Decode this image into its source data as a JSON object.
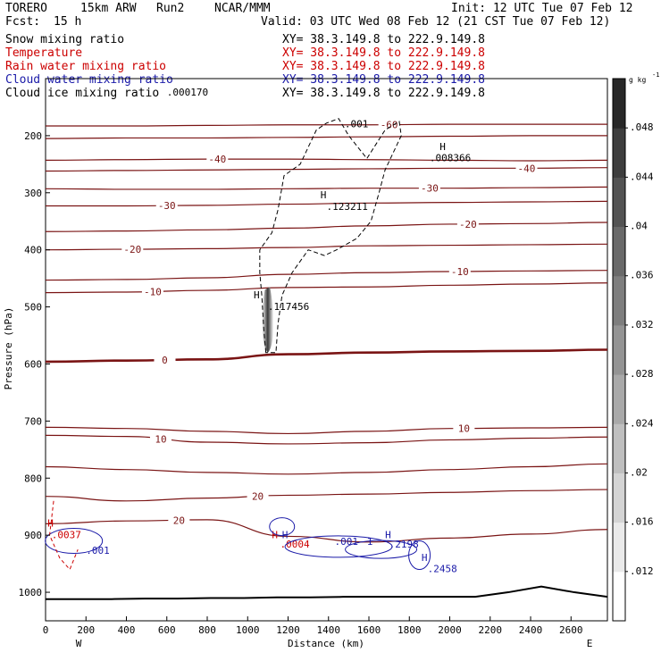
{
  "header": {
    "model": "TORERO",
    "resolution": "15km ARW",
    "run": "Run2",
    "org": "NCAR/MMM",
    "init": "Init: 12 UTC Tue 07 Feb 12",
    "fcst_label": "Fcst:",
    "fcst_value": "15 h",
    "valid": "Valid: 03 UTC Wed 08 Feb 12 (21 CST Tue 07 Feb 12)",
    "fields": [
      {
        "name": "Snow mixing ratio",
        "color": "#000000",
        "xy": "XY=  38.3.149.8 to 222.9.149.8",
        "xy_color": "#000000"
      },
      {
        "name": "Temperature",
        "color": "#cc0000",
        "xy": "XY=  38.3.149.8 to 222.9.149.8",
        "xy_color": "#cc0000"
      },
      {
        "name": "Rain water mixing ratio",
        "color": "#cc0000",
        "xy": "XY=  38.3.149.8 to 222.9.149.8",
        "xy_color": "#cc0000"
      },
      {
        "name": "Cloud water mixing ratio",
        "color": "#1a1aa8",
        "xy": "XY=  38.3.149.8 to 222.9.149.8",
        "xy_color": "#1a1aa8"
      },
      {
        "name": "Cloud ice mixing ratio",
        "color": "#000000",
        "xy": "XY=  38.3.149.8 to 222.9.149.8",
        "xy_color": "#000000"
      }
    ]
  },
  "chart_data": {
    "type": "cross-section",
    "xlabel": "Distance (km)",
    "ylabel": "Pressure (hPa)",
    "xlim": [
      0,
      2780
    ],
    "ylim": [
      1050,
      100
    ],
    "x_ticks": [
      0,
      200,
      400,
      600,
      800,
      1000,
      1200,
      1400,
      1600,
      1800,
      2000,
      2200,
      2400,
      2600
    ],
    "y_ticks": [
      200,
      300,
      400,
      500,
      600,
      700,
      800,
      900,
      1000
    ],
    "x_end_labels": {
      "left": "W",
      "right": "E"
    },
    "colorbar": {
      "unit": "g kg",
      "unit_exp": "-1",
      "ticks": [
        ".012",
        ".016",
        ".02",
        ".024",
        ".028",
        ".032",
        ".036",
        ".04",
        ".044",
        ".048"
      ]
    },
    "temperature_contours": [
      {
        "label": "-60",
        "p": [
          183,
          183,
          182,
          181,
          181,
          180,
          180,
          180
        ],
        "label_x": 1700
      },
      {
        "label": "",
        "p": [
          205,
          204,
          204,
          203,
          202,
          201,
          200,
          200
        ],
        "label_x": null
      },
      {
        "label": "-40",
        "p": [
          243,
          242,
          241,
          241,
          242,
          243,
          244,
          243
        ],
        "label_x": 850
      },
      {
        "label": "-40",
        "p": [
          262,
          261,
          260,
          259,
          258,
          257,
          257,
          256
        ],
        "label_x": 2380
      },
      {
        "label": "-30",
        "p": [
          293,
          294,
          294,
          293,
          292,
          292,
          291,
          290
        ],
        "label_x": 1900
      },
      {
        "label": "-30",
        "p": [
          323,
          323,
          322,
          320,
          318,
          317,
          316,
          315
        ],
        "label_x": 600
      },
      {
        "label": "-20",
        "p": [
          368,
          367,
          365,
          362,
          358,
          355,
          354,
          352
        ],
        "label_x": 2090
      },
      {
        "label": "-20",
        "p": [
          400,
          399,
          398,
          396,
          393,
          392,
          391,
          390
        ],
        "label_x": 430
      },
      {
        "label": "-10",
        "p": [
          453,
          452,
          449,
          443,
          440,
          438,
          437,
          436
        ],
        "label_x": 2050
      },
      {
        "label": "-10",
        "p": [
          475,
          474,
          471,
          466,
          465,
          462,
          460,
          458
        ],
        "label_x": 530
      },
      {
        "label": "0",
        "p": [
          596,
          594,
          592,
          583,
          580,
          578,
          577,
          575
        ],
        "label_x": 590
      },
      {
        "label": "10",
        "p": [
          711,
          713,
          718,
          722,
          718,
          713,
          712,
          711
        ],
        "label_x": 2070
      },
      {
        "label": "10",
        "p": [
          725,
          727,
          737,
          740,
          738,
          733,
          730,
          728
        ],
        "label_x": 570
      },
      {
        "label": "20",
        "p": [
          780,
          785,
          790,
          793,
          790,
          785,
          780,
          775
        ],
        "label_x": null
      },
      {
        "label": "20",
        "p": [
          832,
          840,
          835,
          830,
          828,
          825,
          822,
          820
        ],
        "label_x": 1050
      },
      {
        "label": "20",
        "p": [
          880,
          875,
          873,
          902,
          912,
          905,
          898,
          890
        ],
        "label_x": 660
      }
    ],
    "contour_x": [
      0,
      400,
      800,
      1200,
      1600,
      2000,
      2400,
      2780
    ],
    "snow_annotations": [
      {
        "text": ".000170",
        "x": 600,
        "p": 130
      },
      {
        "text": ".001",
        "x": 1480,
        "p": 185
      },
      {
        "text": ".008366",
        "x": 1900,
        "p": 245
      },
      {
        "text": ".123211",
        "x": 1390,
        "p": 330
      },
      {
        "text": ".117456",
        "x": 1100,
        "p": 505
      }
    ],
    "h_markers": [
      {
        "text": "H",
        "x": 1950,
        "p": 225,
        "color": "#000000"
      },
      {
        "text": "H",
        "x": 1360,
        "p": 310,
        "color": "#000000"
      },
      {
        "text": "H",
        "x": 1030,
        "p": 485,
        "color": "#000000"
      },
      {
        "text": "H",
        "x": 10,
        "p": 885,
        "color": "#cc0000"
      },
      {
        "text": "H",
        "x": 1120,
        "p": 905,
        "color": "#cc0000"
      },
      {
        "text": "H",
        "x": 1170,
        "p": 905,
        "color": "#1a1aa8"
      },
      {
        "text": "H",
        "x": 1680,
        "p": 905,
        "color": "#1a1aa8"
      },
      {
        "text": "H",
        "x": 1860,
        "p": 945,
        "color": "#1a1aa8"
      }
    ],
    "cloud_water_annotations": [
      {
        "text": ".001",
        "x": 200,
        "p": 933,
        "color": "#1a1aa8"
      },
      {
        "text": ".001",
        "x": 1430,
        "p": 917,
        "color": "#1a1aa8"
      },
      {
        "text": ".2198",
        "x": 1700,
        "p": 922,
        "color": "#1a1aa8"
      },
      {
        "text": ".2458",
        "x": 1890,
        "p": 965,
        "color": "#1a1aa8"
      },
      {
        "text": "1",
        "x": 1590,
        "p": 917,
        "color": "#1a1aa8"
      }
    ],
    "rain_annotations": [
      {
        "text": ".0037",
        "x": 30,
        "p": 905,
        "color": "#cc0000"
      },
      {
        "text": ".0004",
        "x": 1160,
        "p": 922,
        "color": "#cc0000"
      }
    ],
    "terrain_surface_p": [
      1012,
      1012,
      1012,
      1011,
      1011,
      1010,
      1010,
      1009,
      1009,
      1008,
      1008,
      1008,
      1008,
      1008,
      1000,
      990,
      1000,
      1008
    ]
  }
}
